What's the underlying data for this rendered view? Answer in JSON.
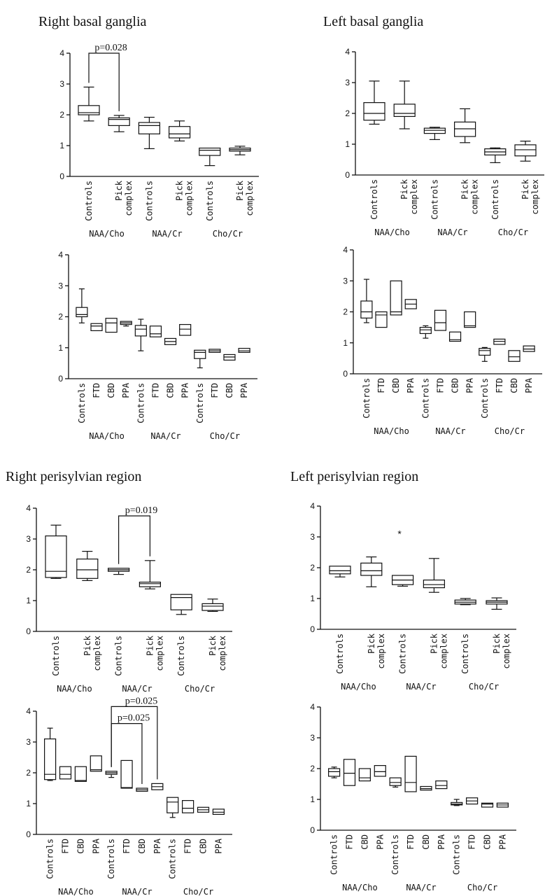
{
  "titles": {
    "right_basal": "Right basal ganglia",
    "left_basal": "Left basal ganglia",
    "right_perisylvian": "Right perisylvian region",
    "left_perisylvian": "Left perisylvian region"
  },
  "chart_data": [
    {
      "id": "rbg-pick",
      "type": "box",
      "ylim": [
        0,
        4
      ],
      "yticks": [
        "0",
        "1",
        "2",
        "3",
        "4"
      ],
      "groups": [
        "NAA/Cho",
        "NAA/Cr",
        "Cho/Cr"
      ],
      "boxes": [
        {
          "label": [
            "Controls"
          ],
          "group": 0,
          "min": 1.8,
          "q1": 2.0,
          "median": 2.07,
          "q3": 2.3,
          "max": 2.9
        },
        {
          "label": [
            "Pick",
            "complex"
          ],
          "group": 0,
          "min": 1.45,
          "q1": 1.65,
          "median": 1.85,
          "q3": 1.9,
          "max": 1.98
        },
        {
          "label": [
            "Controls"
          ],
          "group": 1,
          "min": 0.9,
          "q1": 1.38,
          "median": 1.65,
          "q3": 1.75,
          "max": 1.92
        },
        {
          "label": [
            "Pick",
            "complex"
          ],
          "group": 1,
          "min": 1.15,
          "q1": 1.25,
          "median": 1.38,
          "q3": 1.62,
          "max": 1.8
        },
        {
          "label": [
            "Controls"
          ],
          "group": 2,
          "min": 0.35,
          "q1": 0.68,
          "median": 0.85,
          "q3": 0.92,
          "max": 0.92
        },
        {
          "label": [
            "Pick",
            "complex"
          ],
          "group": 2,
          "min": 0.7,
          "q1": 0.82,
          "median": 0.87,
          "q3": 0.92,
          "max": 0.98
        }
      ],
      "brackets": [
        {
          "from": 0,
          "to": 1,
          "y": 4.0,
          "label": "p=0.028"
        }
      ]
    },
    {
      "id": "lbg-pick",
      "type": "box",
      "ylim": [
        0,
        4
      ],
      "yticks": [
        "0",
        "1",
        "2",
        "3",
        "4"
      ],
      "groups": [
        "NAA/Cho",
        "NAA/Cr",
        "Cho/Cr"
      ],
      "boxes": [
        {
          "label": [
            "Controls"
          ],
          "group": 0,
          "min": 1.65,
          "q1": 1.78,
          "median": 2.0,
          "q3": 2.35,
          "max": 3.05
        },
        {
          "label": [
            "Pick",
            "complex"
          ],
          "group": 0,
          "min": 1.5,
          "q1": 1.9,
          "median": 2.0,
          "q3": 2.3,
          "max": 3.05
        },
        {
          "label": [
            "Controls"
          ],
          "group": 1,
          "min": 1.15,
          "q1": 1.35,
          "median": 1.45,
          "q3": 1.52,
          "max": 1.55
        },
        {
          "label": [
            "Pick",
            "complex"
          ],
          "group": 1,
          "min": 1.05,
          "q1": 1.25,
          "median": 1.5,
          "q3": 1.72,
          "max": 2.15
        },
        {
          "label": [
            "Controls"
          ],
          "group": 2,
          "min": 0.4,
          "q1": 0.65,
          "median": 0.75,
          "q3": 0.85,
          "max": 0.88
        },
        {
          "label": [
            "Pick",
            "complex"
          ],
          "group": 2,
          "min": 0.45,
          "q1": 0.62,
          "median": 0.82,
          "q3": 0.98,
          "max": 1.1
        }
      ],
      "brackets": []
    },
    {
      "id": "rbg-sub",
      "type": "box",
      "ylim": [
        0,
        4
      ],
      "yticks": [
        "0",
        "1",
        "2",
        "3",
        "4"
      ],
      "groups": [
        "NAA/Cho",
        "NAA/Cr",
        "Cho/Cr"
      ],
      "boxes": [
        {
          "label": [
            "Controls"
          ],
          "group": 0,
          "min": 1.8,
          "q1": 2.0,
          "median": 2.07,
          "q3": 2.3,
          "max": 2.9
        },
        {
          "label": [
            "FTD"
          ],
          "group": 0,
          "min": 1.55,
          "q1": 1.55,
          "median": 1.7,
          "q3": 1.78,
          "max": 1.78
        },
        {
          "label": [
            "CBD"
          ],
          "group": 0,
          "min": 1.5,
          "q1": 1.5,
          "median": 1.8,
          "q3": 1.95,
          "max": 1.95
        },
        {
          "label": [
            "PPA"
          ],
          "group": 0,
          "min": 1.7,
          "q1": 1.75,
          "median": 1.8,
          "q3": 1.85,
          "max": 1.85
        },
        {
          "label": [
            "Controls"
          ],
          "group": 1,
          "min": 0.9,
          "q1": 1.38,
          "median": 1.6,
          "q3": 1.72,
          "max": 1.92
        },
        {
          "label": [
            "FTD"
          ],
          "group": 1,
          "min": 1.35,
          "q1": 1.35,
          "median": 1.45,
          "q3": 1.7,
          "max": 1.7
        },
        {
          "label": [
            "CBD"
          ],
          "group": 1,
          "min": 1.1,
          "q1": 1.1,
          "median": 1.2,
          "q3": 1.3,
          "max": 1.3
        },
        {
          "label": [
            "PPA"
          ],
          "group": 1,
          "min": 1.4,
          "q1": 1.4,
          "median": 1.6,
          "q3": 1.75,
          "max": 1.75
        },
        {
          "label": [
            "Controls"
          ],
          "group": 2,
          "min": 0.35,
          "q1": 0.65,
          "median": 0.85,
          "q3": 0.92,
          "max": 0.92
        },
        {
          "label": [
            "FTD"
          ],
          "group": 2,
          "min": 0.85,
          "q1": 0.85,
          "median": 0.9,
          "q3": 0.95,
          "max": 0.95
        },
        {
          "label": [
            "CBD"
          ],
          "group": 2,
          "min": 0.6,
          "q1": 0.6,
          "median": 0.7,
          "q3": 0.78,
          "max": 0.78
        },
        {
          "label": [
            "PPA"
          ],
          "group": 2,
          "min": 0.85,
          "q1": 0.85,
          "median": 0.9,
          "q3": 0.98,
          "max": 0.98
        }
      ],
      "brackets": []
    },
    {
      "id": "lbg-sub",
      "type": "box",
      "ylim": [
        0,
        4
      ],
      "yticks": [
        "0",
        "1",
        "2",
        "3",
        "4"
      ],
      "groups": [
        "NAA/Cho",
        "NAA/Cr",
        "Cho/Cr"
      ],
      "boxes": [
        {
          "label": [
            "Controls"
          ],
          "group": 0,
          "min": 1.65,
          "q1": 1.8,
          "median": 2.0,
          "q3": 2.35,
          "max": 3.05
        },
        {
          "label": [
            "FTD"
          ],
          "group": 0,
          "min": 1.5,
          "q1": 1.5,
          "median": 1.9,
          "q3": 2.0,
          "max": 2.0
        },
        {
          "label": [
            "CBD"
          ],
          "group": 0,
          "min": 1.9,
          "q1": 1.9,
          "median": 2.0,
          "q3": 3.0,
          "max": 3.0
        },
        {
          "label": [
            "PPA"
          ],
          "group": 0,
          "min": 2.1,
          "q1": 2.1,
          "median": 2.25,
          "q3": 2.4,
          "max": 2.4
        },
        {
          "label": [
            "Controls"
          ],
          "group": 1,
          "min": 1.15,
          "q1": 1.3,
          "median": 1.42,
          "q3": 1.5,
          "max": 1.55
        },
        {
          "label": [
            "FTD"
          ],
          "group": 1,
          "min": 1.4,
          "q1": 1.4,
          "median": 1.65,
          "q3": 2.05,
          "max": 2.05
        },
        {
          "label": [
            "CBD"
          ],
          "group": 1,
          "min": 1.05,
          "q1": 1.05,
          "median": 1.1,
          "q3": 1.35,
          "max": 1.35
        },
        {
          "label": [
            "PPA"
          ],
          "group": 1,
          "min": 1.5,
          "q1": 1.5,
          "median": 1.55,
          "q3": 2.0,
          "max": 2.0
        },
        {
          "label": [
            "Controls"
          ],
          "group": 2,
          "min": 0.4,
          "q1": 0.6,
          "median": 0.75,
          "q3": 0.82,
          "max": 0.85
        },
        {
          "label": [
            "FTD"
          ],
          "group": 2,
          "min": 0.95,
          "q1": 0.95,
          "median": 1.05,
          "q3": 1.12,
          "max": 1.12
        },
        {
          "label": [
            "CBD"
          ],
          "group": 2,
          "min": 0.4,
          "q1": 0.4,
          "median": 0.55,
          "q3": 0.75,
          "max": 0.75
        },
        {
          "label": [
            "PPA"
          ],
          "group": 2,
          "min": 0.72,
          "q1": 0.72,
          "median": 0.8,
          "q3": 0.9,
          "max": 0.9
        }
      ],
      "brackets": []
    },
    {
      "id": "rps-pick",
      "type": "box",
      "ylim": [
        0,
        4
      ],
      "yticks": [
        "0",
        "1",
        "2",
        "3",
        "4"
      ],
      "groups": [
        "NAA/Cho",
        "NAA/Cr",
        "Cho/Cr"
      ],
      "boxes": [
        {
          "label": [
            "Controls"
          ],
          "group": 0,
          "min": 1.72,
          "q1": 1.75,
          "median": 1.95,
          "q3": 3.1,
          "max": 3.45
        },
        {
          "label": [
            "Pick",
            "complex"
          ],
          "group": 0,
          "min": 1.65,
          "q1": 1.72,
          "median": 2.0,
          "q3": 2.35,
          "max": 2.6
        },
        {
          "label": [
            "Controls"
          ],
          "group": 1,
          "min": 1.85,
          "q1": 1.95,
          "median": 2.0,
          "q3": 2.05,
          "max": 2.05
        },
        {
          "label": [
            "Pick",
            "complex"
          ],
          "group": 1,
          "min": 1.38,
          "q1": 1.45,
          "median": 1.55,
          "q3": 1.6,
          "max": 2.3
        },
        {
          "label": [
            "Controls"
          ],
          "group": 2,
          "min": 0.55,
          "q1": 0.7,
          "median": 1.1,
          "q3": 1.2,
          "max": 1.2
        },
        {
          "label": [
            "Pick",
            "complex"
          ],
          "group": 2,
          "min": 0.65,
          "q1": 0.68,
          "median": 0.82,
          "q3": 0.9,
          "max": 1.05
        }
      ],
      "brackets": [
        {
          "from": 2,
          "to": 3,
          "y": 3.75,
          "label": "p=0.019"
        }
      ]
    },
    {
      "id": "lps-pick",
      "type": "box",
      "ylim": [
        0,
        4
      ],
      "yticks": [
        "0",
        "1",
        "2",
        "3",
        "4"
      ],
      "groups": [
        "NAA/Cho",
        "NAA/Cr",
        "Cho/Cr"
      ],
      "boxes": [
        {
          "label": [
            "Controls"
          ],
          "group": 0,
          "min": 1.7,
          "q1": 1.8,
          "median": 1.9,
          "q3": 2.05,
          "max": 2.05
        },
        {
          "label": [
            "Pick",
            "complex"
          ],
          "group": 0,
          "min": 1.38,
          "q1": 1.75,
          "median": 1.9,
          "q3": 2.15,
          "max": 2.35
        },
        {
          "label": [
            "Controls"
          ],
          "group": 1,
          "min": 1.4,
          "q1": 1.45,
          "median": 1.6,
          "q3": 1.75,
          "max": 1.75
        },
        {
          "label": [
            "Pick",
            "complex"
          ],
          "group": 1,
          "min": 1.2,
          "q1": 1.35,
          "median": 1.45,
          "q3": 1.6,
          "max": 2.3
        },
        {
          "label": [
            "Controls"
          ],
          "group": 2,
          "min": 0.8,
          "q1": 0.82,
          "median": 0.88,
          "q3": 0.95,
          "max": 1.0
        },
        {
          "label": [
            "Pick",
            "complex"
          ],
          "group": 2,
          "min": 0.65,
          "q1": 0.82,
          "median": 0.88,
          "q3": 0.93,
          "max": 1.02
        }
      ],
      "brackets": [],
      "annotations": [
        {
          "text": "*",
          "x": 1.9,
          "y": 3.1
        }
      ]
    },
    {
      "id": "rps-sub",
      "type": "box",
      "ylim": [
        0,
        4
      ],
      "yticks": [
        "0",
        "1",
        "2",
        "3",
        "4"
      ],
      "groups": [
        "NAA/Cho",
        "NAA/Cr",
        "Cho/Cr"
      ],
      "boxes": [
        {
          "label": [
            "Controls"
          ],
          "group": 0,
          "min": 1.75,
          "q1": 1.78,
          "median": 1.95,
          "q3": 3.1,
          "max": 3.45
        },
        {
          "label": [
            "FTD"
          ],
          "group": 0,
          "min": 1.8,
          "q1": 1.8,
          "median": 1.95,
          "q3": 2.2,
          "max": 2.2
        },
        {
          "label": [
            "CBD"
          ],
          "group": 0,
          "min": 1.72,
          "q1": 1.72,
          "median": 1.75,
          "q3": 2.2,
          "max": 2.2
        },
        {
          "label": [
            "PPA"
          ],
          "group": 0,
          "min": 2.05,
          "q1": 2.05,
          "median": 2.1,
          "q3": 2.55,
          "max": 2.55
        },
        {
          "label": [
            "Controls"
          ],
          "group": 1,
          "min": 1.85,
          "q1": 1.95,
          "median": 2.0,
          "q3": 2.05,
          "max": 2.05
        },
        {
          "label": [
            "FTD"
          ],
          "group": 1,
          "min": 1.5,
          "q1": 1.5,
          "median": 1.52,
          "q3": 2.4,
          "max": 2.4
        },
        {
          "label": [
            "CBD"
          ],
          "group": 1,
          "min": 1.4,
          "q1": 1.4,
          "median": 1.45,
          "q3": 1.5,
          "max": 1.5
        },
        {
          "label": [
            "PPA"
          ],
          "group": 1,
          "min": 1.45,
          "q1": 1.45,
          "median": 1.55,
          "q3": 1.65,
          "max": 1.65
        },
        {
          "label": [
            "Controls"
          ],
          "group": 2,
          "min": 0.55,
          "q1": 0.7,
          "median": 1.05,
          "q3": 1.2,
          "max": 1.2
        },
        {
          "label": [
            "FTD"
          ],
          "group": 2,
          "min": 0.7,
          "q1": 0.7,
          "median": 0.85,
          "q3": 1.1,
          "max": 1.1
        },
        {
          "label": [
            "CBD"
          ],
          "group": 2,
          "min": 0.72,
          "q1": 0.72,
          "median": 0.8,
          "q3": 0.88,
          "max": 0.88
        },
        {
          "label": [
            "PPA"
          ],
          "group": 2,
          "min": 0.65,
          "q1": 0.65,
          "median": 0.72,
          "q3": 0.82,
          "max": 0.82
        }
      ],
      "brackets": [
        {
          "from": 4,
          "to": 7,
          "y": 4.15,
          "label": "p=0.025"
        },
        {
          "from": 4,
          "to": 6,
          "y": 3.6,
          "label": "p=0.025"
        }
      ]
    },
    {
      "id": "lps-sub",
      "type": "box",
      "ylim": [
        0,
        4
      ],
      "yticks": [
        "0",
        "1",
        "2",
        "3",
        "4"
      ],
      "groups": [
        "NAA/Cho",
        "NAA/Cr",
        "Cho/Cr"
      ],
      "boxes": [
        {
          "label": [
            "Controls"
          ],
          "group": 0,
          "min": 1.7,
          "q1": 1.75,
          "median": 1.9,
          "q3": 2.0,
          "max": 2.05
        },
        {
          "label": [
            "FTD"
          ],
          "group": 0,
          "min": 1.45,
          "q1": 1.45,
          "median": 1.85,
          "q3": 2.3,
          "max": 2.3
        },
        {
          "label": [
            "CBD"
          ],
          "group": 0,
          "min": 1.6,
          "q1": 1.6,
          "median": 1.7,
          "q3": 2.0,
          "max": 2.0
        },
        {
          "label": [
            "PPA"
          ],
          "group": 0,
          "min": 1.75,
          "q1": 1.75,
          "median": 1.9,
          "q3": 2.1,
          "max": 2.1
        },
        {
          "label": [
            "Controls"
          ],
          "group": 1,
          "min": 1.4,
          "q1": 1.45,
          "median": 1.55,
          "q3": 1.7,
          "max": 1.7
        },
        {
          "label": [
            "FTD"
          ],
          "group": 1,
          "min": 1.25,
          "q1": 1.25,
          "median": 1.55,
          "q3": 2.4,
          "max": 2.4
        },
        {
          "label": [
            "CBD"
          ],
          "group": 1,
          "min": 1.3,
          "q1": 1.3,
          "median": 1.35,
          "q3": 1.42,
          "max": 1.42
        },
        {
          "label": [
            "PPA"
          ],
          "group": 1,
          "min": 1.35,
          "q1": 1.35,
          "median": 1.45,
          "q3": 1.6,
          "max": 1.6
        },
        {
          "label": [
            "Controls"
          ],
          "group": 2,
          "min": 0.8,
          "q1": 0.82,
          "median": 0.85,
          "q3": 0.9,
          "max": 1.0
        },
        {
          "label": [
            "FTD"
          ],
          "group": 2,
          "min": 0.85,
          "q1": 0.85,
          "median": 0.95,
          "q3": 1.05,
          "max": 1.05
        },
        {
          "label": [
            "CBD"
          ],
          "group": 2,
          "min": 0.75,
          "q1": 0.75,
          "median": 0.85,
          "q3": 0.88,
          "max": 0.88
        },
        {
          "label": [
            "PPA"
          ],
          "group": 2,
          "min": 0.75,
          "q1": 0.75,
          "median": 0.82,
          "q3": 0.88,
          "max": 0.88
        }
      ],
      "brackets": []
    }
  ]
}
